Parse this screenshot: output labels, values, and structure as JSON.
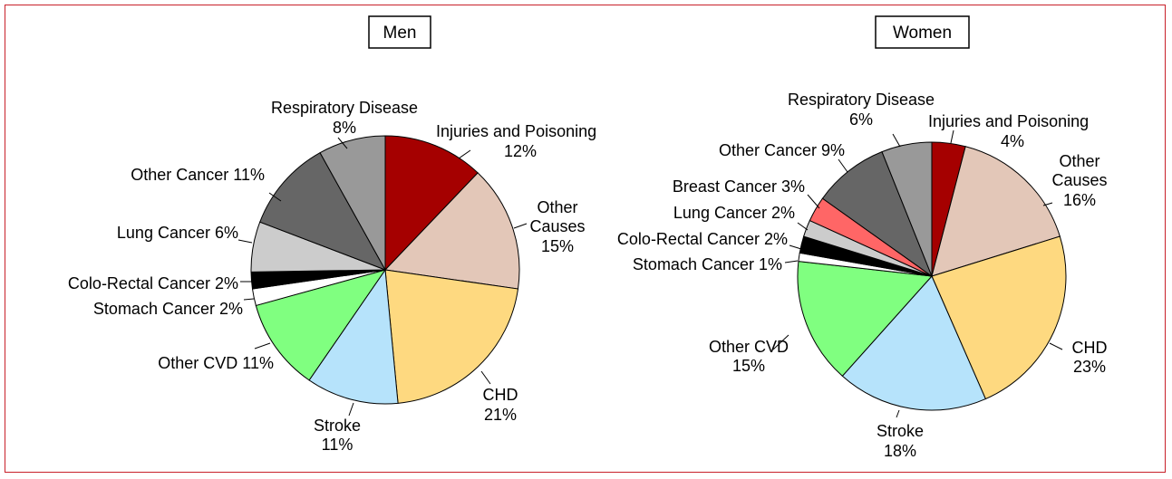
{
  "chart_data": [
    {
      "type": "pie",
      "title": "Men",
      "slices": [
        {
          "label": "Injuries and Poisoning",
          "value": 12,
          "pct_text": "12%",
          "color": "#a50000"
        },
        {
          "label": "Other Causes",
          "value": 15,
          "pct_text": "15%",
          "color": "#e3c7b8"
        },
        {
          "label": "CHD",
          "value": 21,
          "pct_text": "21%",
          "color": "#fed980"
        },
        {
          "label": "Stroke",
          "value": 11,
          "pct_text": "11%",
          "color": "#b6e3fb"
        },
        {
          "label": "Other CVD",
          "value": 11,
          "pct_text": "11%",
          "color": "#80ff80"
        },
        {
          "label": "Stomach Cancer",
          "value": 2,
          "pct_text": "2%",
          "color": "#ffffff"
        },
        {
          "label": "Colo-Rectal Cancer",
          "value": 2,
          "pct_text": "2%",
          "color": "#000000"
        },
        {
          "label": "Lung Cancer",
          "value": 6,
          "pct_text": "6%",
          "color": "#cccccc"
        },
        {
          "label": "Other Cancer",
          "value": 11,
          "pct_text": "11%",
          "color": "#666666"
        },
        {
          "label": "Respiratory Disease",
          "value": 8,
          "pct_text": "8%",
          "color": "#999999"
        }
      ]
    },
    {
      "type": "pie",
      "title": "Women",
      "slices": [
        {
          "label": "Injuries and Poisoning",
          "value": 4,
          "pct_text": "4%",
          "color": "#a50000"
        },
        {
          "label": "Other Causes",
          "value": 16,
          "pct_text": "16%",
          "color": "#e3c7b8"
        },
        {
          "label": "CHD",
          "value": 23,
          "pct_text": "23%",
          "color": "#fed980"
        },
        {
          "label": "Stroke",
          "value": 18,
          "pct_text": "18%",
          "color": "#b6e3fb"
        },
        {
          "label": "Other CVD",
          "value": 15,
          "pct_text": "15%",
          "color": "#80ff80"
        },
        {
          "label": "Stomach Cancer",
          "value": 1,
          "pct_text": "1%",
          "color": "#ffffff"
        },
        {
          "label": "Colo-Rectal Cancer",
          "value": 2,
          "pct_text": "2%",
          "color": "#000000"
        },
        {
          "label": "Lung Cancer",
          "value": 2,
          "pct_text": "2%",
          "color": "#cccccc"
        },
        {
          "label": "Breast Cancer",
          "value": 3,
          "pct_text": "3%",
          "color": "#ff6666"
        },
        {
          "label": "Other Cancer",
          "value": 9,
          "pct_text": "9%",
          "color": "#666666"
        },
        {
          "label": "Respiratory Disease",
          "value": 6,
          "pct_text": "6%",
          "color": "#999999"
        }
      ]
    }
  ]
}
